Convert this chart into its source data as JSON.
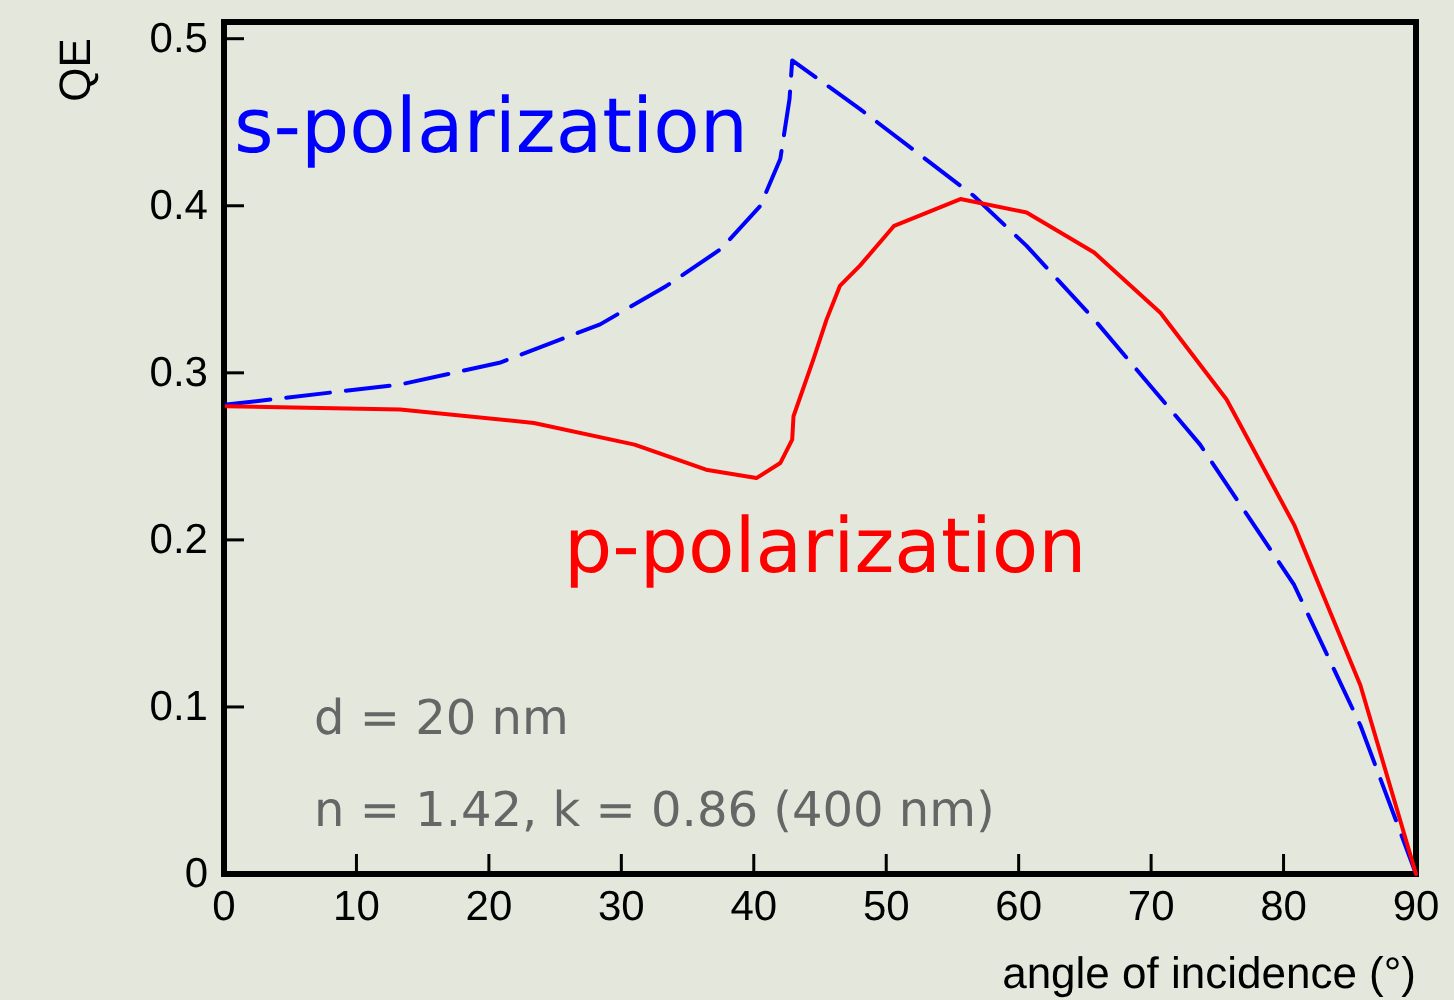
{
  "chart_data": {
    "type": "line",
    "xlabel": "angle of incidence (°)",
    "ylabel": "QE",
    "xlim": [
      0,
      90
    ],
    "xticks": [
      0,
      10,
      20,
      30,
      40,
      50,
      60,
      70,
      80,
      90
    ],
    "ylim": [
      0,
      0.51
    ],
    "yticks": [
      0,
      0.1,
      0.2,
      0.3,
      0.4,
      0.5
    ],
    "series": [
      {
        "name": "s-polarization",
        "color": "#0000ff",
        "line_style": "dashed",
        "x": [
          0.2,
          13.3,
          20.8,
          28.4,
          33.4,
          37.5,
          40.5,
          42,
          42.7,
          42.9,
          48,
          56.6,
          60.6,
          65.7,
          73.7,
          80.8,
          85.8,
          90
        ],
        "values": [
          0.281,
          0.293,
          0.306,
          0.329,
          0.352,
          0.374,
          0.4,
          0.428,
          0.464,
          0.487,
          0.458,
          0.406,
          0.376,
          0.332,
          0.257,
          0.173,
          0.089,
          0
        ]
      },
      {
        "name": "p-polarization",
        "color": "#ff0000",
        "line_style": "solid",
        "x": [
          0.2,
          13.3,
          23.4,
          31,
          36.4,
          40.2,
          42,
          42.9,
          43,
          44.5,
          45.5,
          46.5,
          48,
          50.6,
          55.6,
          60.6,
          65.7,
          70.7,
          75.7,
          80.8,
          85.8,
          90
        ],
        "values": [
          0.28,
          0.278,
          0.27,
          0.257,
          0.242,
          0.237,
          0.246,
          0.26,
          0.274,
          0.308,
          0.332,
          0.352,
          0.364,
          0.388,
          0.404,
          0.396,
          0.372,
          0.336,
          0.284,
          0.209,
          0.113,
          0
        ]
      }
    ],
    "annotations": [
      "d = 20 nm",
      "n = 1.42, k = 0.86 (400 nm)"
    ]
  }
}
